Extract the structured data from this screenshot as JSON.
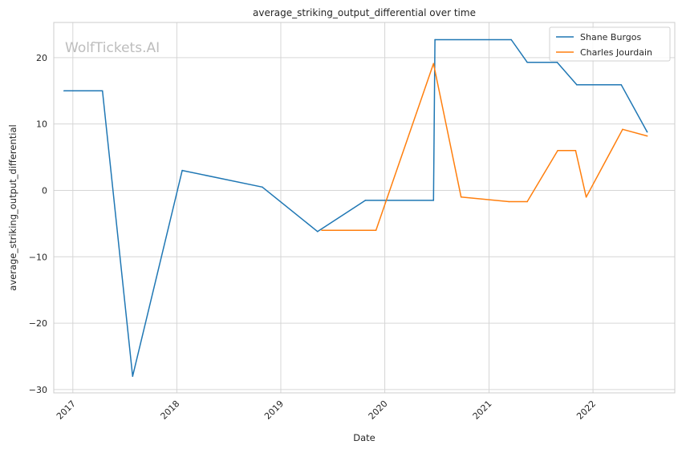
{
  "chart_data": {
    "type": "line",
    "title": "average_striking_output_differential over time",
    "xlabel": "Date",
    "ylabel": "average_striking_output_differential",
    "watermark": "WolfTickets.AI",
    "x_axis_type": "date",
    "xlim": [
      "2016-10-26",
      "2022-10-15"
    ],
    "ylim": [
      -30.5,
      25.3
    ],
    "x_ticks": [
      {
        "date": "2017-01-01",
        "label": "2017"
      },
      {
        "date": "2018-01-01",
        "label": "2018"
      },
      {
        "date": "2019-01-01",
        "label": "2019"
      },
      {
        "date": "2020-01-01",
        "label": "2020"
      },
      {
        "date": "2021-01-01",
        "label": "2021"
      },
      {
        "date": "2022-01-01",
        "label": "2022"
      }
    ],
    "y_ticks": [
      {
        "value": 20,
        "label": "20"
      },
      {
        "value": 10,
        "label": "10"
      },
      {
        "value": 0,
        "label": "0"
      },
      {
        "value": -10,
        "label": "−10"
      },
      {
        "value": -20,
        "label": "−20"
      },
      {
        "value": -30,
        "label": "−30"
      }
    ],
    "grid": true,
    "legend": "top-right",
    "series": [
      {
        "name": "Shane Burgos",
        "color": "#1f77b4",
        "points": [
          {
            "x": "2016-12-01",
            "y": 15.0
          },
          {
            "x": "2017-04-15",
            "y": 15.0
          },
          {
            "x": "2017-07-30",
            "y": -28.0
          },
          {
            "x": "2018-01-20",
            "y": 3.0
          },
          {
            "x": "2018-10-28",
            "y": 0.5
          },
          {
            "x": "2019-05-10",
            "y": -6.2
          },
          {
            "x": "2019-10-25",
            "y": -1.5
          },
          {
            "x": "2020-06-20",
            "y": -1.5
          },
          {
            "x": "2020-06-25",
            "y": 22.7
          },
          {
            "x": "2021-03-20",
            "y": 22.7
          },
          {
            "x": "2021-05-15",
            "y": 19.3
          },
          {
            "x": "2021-08-28",
            "y": 19.3
          },
          {
            "x": "2021-11-05",
            "y": 15.9
          },
          {
            "x": "2022-04-10",
            "y": 15.9
          },
          {
            "x": "2022-07-10",
            "y": 8.8
          }
        ]
      },
      {
        "name": "Charles Jourdain",
        "color": "#ff7f0e",
        "points": [
          {
            "x": "2019-05-25",
            "y": -6.0
          },
          {
            "x": "2019-12-01",
            "y": -6.0
          },
          {
            "x": "2020-06-20",
            "y": 19.1
          },
          {
            "x": "2020-09-25",
            "y": -1.0
          },
          {
            "x": "2021-03-12",
            "y": -1.7
          },
          {
            "x": "2021-05-15",
            "y": -1.7
          },
          {
            "x": "2021-08-30",
            "y": 6.0
          },
          {
            "x": "2021-11-01",
            "y": 6.0
          },
          {
            "x": "2021-12-08",
            "y": -1.0
          },
          {
            "x": "2022-04-15",
            "y": 9.2
          },
          {
            "x": "2022-07-10",
            "y": 8.2
          }
        ]
      }
    ]
  }
}
